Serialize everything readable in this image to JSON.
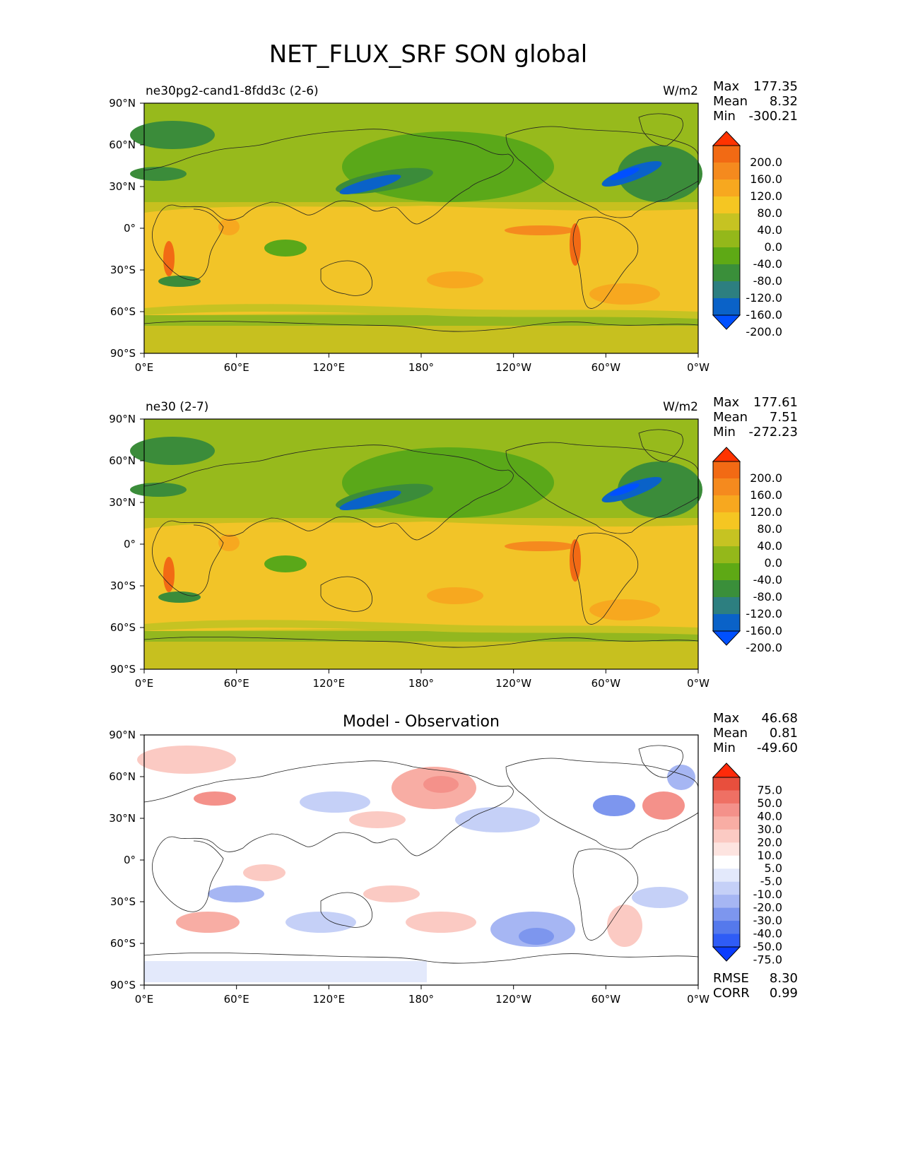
{
  "title": "NET_FLUX_SRF SON global",
  "lat_labels": [
    "90°N",
    "60°N",
    "30°N",
    "0°",
    "30°S",
    "60°S",
    "90°S"
  ],
  "lon_labels": [
    "0°E",
    "60°E",
    "120°E",
    "180°",
    "120°W",
    "60°W",
    "0°W"
  ],
  "panels": [
    {
      "name": "test",
      "case_label": "ne30pg2-cand1-8fdd3c (2-6)",
      "center_title": "",
      "units": "W/m2",
      "stats": [
        {
          "label": "Max",
          "value": "177.35"
        },
        {
          "label": "Mean",
          "value": "8.32"
        },
        {
          "label": "Min",
          "value": "-300.21"
        }
      ],
      "colorbar": {
        "ticks": [
          "200.0",
          "160.0",
          "120.0",
          "80.0",
          "40.0",
          "0.0",
          "-40.0",
          "-80.0",
          "-120.0",
          "-160.0",
          "-200.0"
        ],
        "colors": [
          "#0050ff",
          "#0a62c8",
          "#2d7f80",
          "#3a8f3a",
          "#5ea915",
          "#94b81a",
          "#c6c322",
          "#f5c622",
          "#f7a81f",
          "#f58a1e",
          "#f26a14",
          "#ff3300"
        ]
      },
      "footer_stats": []
    },
    {
      "name": "reference",
      "case_label": "ne30 (2-7)",
      "center_title": "",
      "units": "W/m2",
      "stats": [
        {
          "label": "Max",
          "value": "177.61"
        },
        {
          "label": "Mean",
          "value": "7.51"
        },
        {
          "label": "Min",
          "value": "-272.23"
        }
      ],
      "colorbar": {
        "ticks": [
          "200.0",
          "160.0",
          "120.0",
          "80.0",
          "40.0",
          "0.0",
          "-40.0",
          "-80.0",
          "-120.0",
          "-160.0",
          "-200.0"
        ],
        "colors": [
          "#0050ff",
          "#0a62c8",
          "#2d7f80",
          "#3a8f3a",
          "#5ea915",
          "#94b81a",
          "#c6c322",
          "#f5c622",
          "#f7a81f",
          "#f58a1e",
          "#f26a14",
          "#ff3300"
        ]
      },
      "footer_stats": []
    },
    {
      "name": "difference",
      "case_label": "",
      "center_title": "Model - Observation",
      "units": "",
      "stats": [
        {
          "label": "Max",
          "value": "46.68"
        },
        {
          "label": "Mean",
          "value": "0.81"
        },
        {
          "label": "Min",
          "value": "-49.60"
        }
      ],
      "colorbar": {
        "ticks": [
          "75.0",
          "50.0",
          "40.0",
          "30.0",
          "20.0",
          "10.0",
          "5.0",
          "-5.0",
          "-10.0",
          "-20.0",
          "-30.0",
          "-40.0",
          "-50.0",
          "-75.0"
        ],
        "colors": [
          "#0a3cff",
          "#2f5cf6",
          "#5579ec",
          "#7d96ee",
          "#a6b6f3",
          "#c5d0f7",
          "#e3e9fb",
          "#ffffff",
          "#fde4e0",
          "#fbcac3",
          "#f8ada4",
          "#f4918a",
          "#ef7064",
          "#e84f3d",
          "#ff2a0a"
        ]
      },
      "footer_stats": [
        {
          "label": "RMSE",
          "value": "8.30"
        },
        {
          "label": "CORR",
          "value": "0.99"
        }
      ]
    }
  ]
}
